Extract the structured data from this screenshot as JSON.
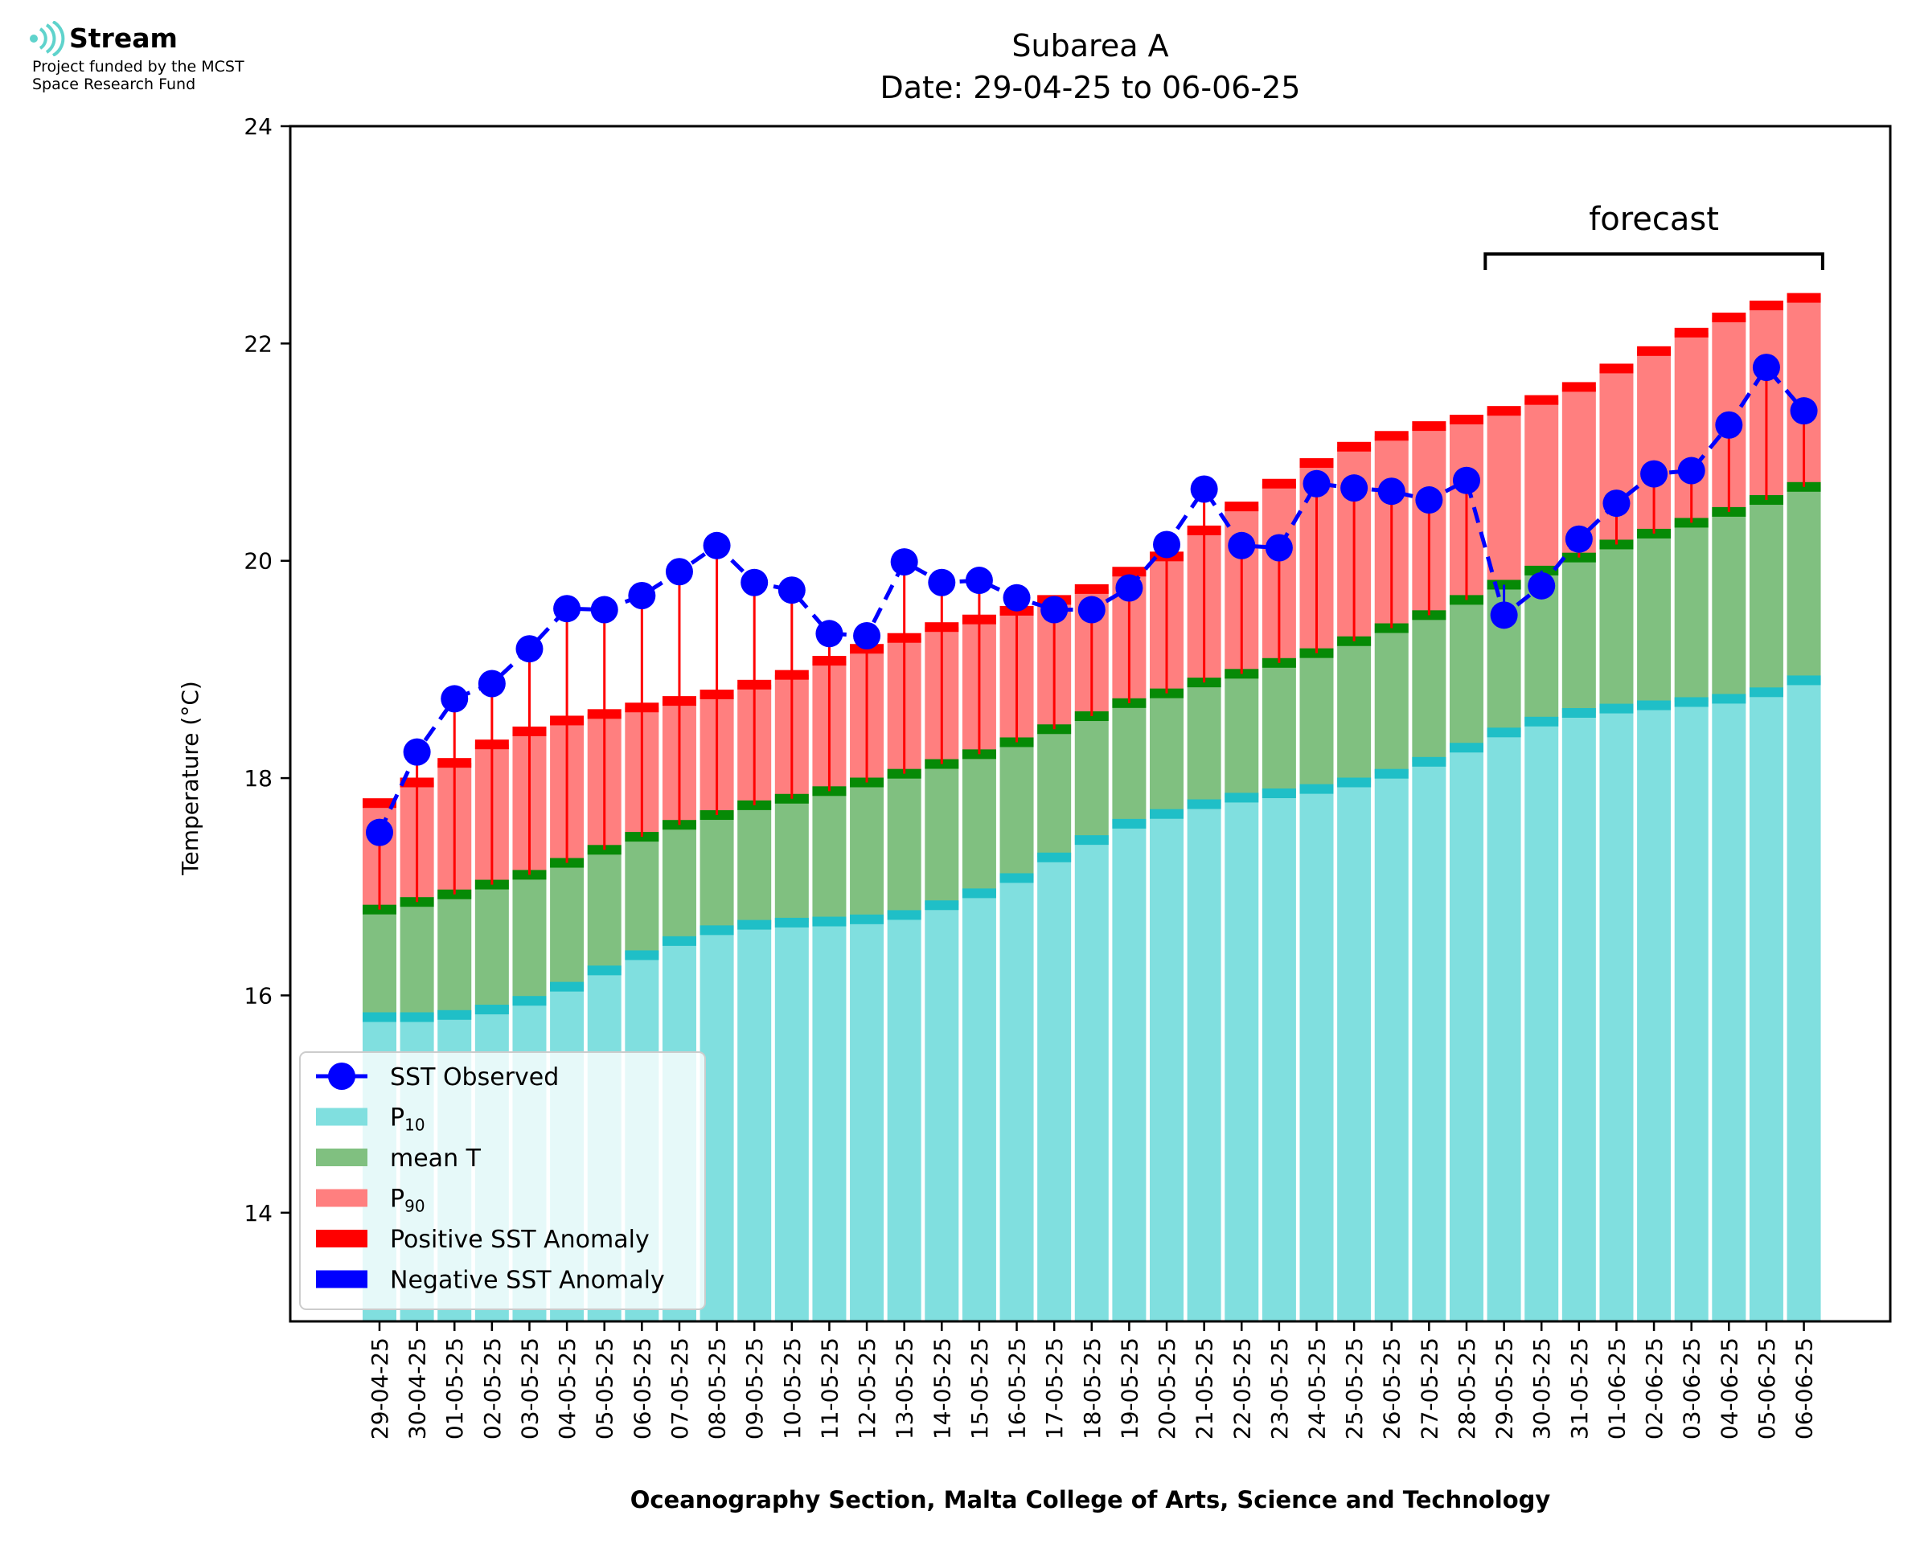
{
  "logo": {
    "name": "Stream",
    "line1": "Project funded by the MCST",
    "line2": "Space Research Fund"
  },
  "chart_data": {
    "type": "bar",
    "title": "Subarea A",
    "subtitle": "Date: 29-04-25 to 06-06-25",
    "xlabel": "Oceanography Section, Malta College of Arts, Science and Technology",
    "ylabel": "Temperature (°C)",
    "ylim": [
      13,
      24
    ],
    "yticks": [
      14,
      16,
      18,
      20,
      22,
      24
    ],
    "grid": false,
    "legend_position": "lower-left",
    "annotation": "forecast",
    "forecast_range": [
      "29-05-25",
      "06-06-25"
    ],
    "colors": {
      "p10": "#80dfdf",
      "p10_edge": "#1fbfc7",
      "mean": "#80c080",
      "mean_edge": "#068a06",
      "p90": "#ff7f7f",
      "p90_edge": "#ff0000",
      "observed": "#0000ff",
      "positive_anomaly": "#ff0000",
      "negative_anomaly": "#0000ff"
    },
    "categories": [
      "29-04-25",
      "30-04-25",
      "01-05-25",
      "02-05-25",
      "03-05-25",
      "04-05-25",
      "05-05-25",
      "06-05-25",
      "07-05-25",
      "08-05-25",
      "09-05-25",
      "10-05-25",
      "11-05-25",
      "12-05-25",
      "13-05-25",
      "14-05-25",
      "15-05-25",
      "16-05-25",
      "17-05-25",
      "18-05-25",
      "19-05-25",
      "20-05-25",
      "21-05-25",
      "22-05-25",
      "23-05-25",
      "24-05-25",
      "25-05-25",
      "26-05-25",
      "27-05-25",
      "28-05-25",
      "29-05-25",
      "30-05-25",
      "31-05-25",
      "01-06-25",
      "02-06-25",
      "03-06-25",
      "04-06-25",
      "05-06-25",
      "06-06-25"
    ],
    "series": [
      {
        "name": "P10",
        "key": "p10",
        "values": [
          15.8,
          15.8,
          15.82,
          15.87,
          15.95,
          16.08,
          16.23,
          16.37,
          16.5,
          16.6,
          16.65,
          16.67,
          16.68,
          16.7,
          16.74,
          16.83,
          16.94,
          17.08,
          17.27,
          17.43,
          17.58,
          17.67,
          17.76,
          17.82,
          17.86,
          17.9,
          17.96,
          18.04,
          18.15,
          18.28,
          18.42,
          18.52,
          18.6,
          18.64,
          18.67,
          18.7,
          18.73,
          18.79,
          18.9
        ]
      },
      {
        "name": "mean T",
        "key": "mean",
        "values": [
          16.79,
          16.86,
          16.93,
          17.02,
          17.11,
          17.22,
          17.34,
          17.46,
          17.57,
          17.66,
          17.75,
          17.81,
          17.88,
          17.96,
          18.04,
          18.13,
          18.22,
          18.33,
          18.45,
          18.57,
          18.69,
          18.78,
          18.88,
          18.96,
          19.06,
          19.15,
          19.26,
          19.38,
          19.5,
          19.64,
          19.78,
          19.91,
          20.03,
          20.15,
          20.25,
          20.35,
          20.45,
          20.56,
          20.68
        ]
      },
      {
        "name": "P90",
        "key": "p90",
        "values": [
          17.77,
          17.96,
          18.14,
          18.31,
          18.43,
          18.53,
          18.59,
          18.65,
          18.71,
          18.77,
          18.86,
          18.95,
          19.08,
          19.19,
          19.29,
          19.39,
          19.46,
          19.54,
          19.64,
          19.74,
          19.9,
          20.04,
          20.28,
          20.5,
          20.71,
          20.9,
          21.05,
          21.15,
          21.24,
          21.3,
          21.38,
          21.48,
          21.6,
          21.77,
          21.93,
          22.1,
          22.24,
          22.35,
          22.42
        ]
      },
      {
        "name": "SST Observed",
        "key": "observed",
        "values": [
          17.5,
          18.24,
          18.73,
          18.87,
          19.19,
          19.56,
          19.55,
          19.68,
          19.9,
          20.14,
          19.8,
          19.73,
          19.33,
          19.31,
          19.99,
          19.8,
          19.82,
          19.66,
          19.55,
          19.55,
          19.75,
          20.15,
          20.66,
          20.14,
          20.12,
          20.71,
          20.67,
          20.64,
          20.56,
          20.74,
          19.5,
          19.77,
          20.2,
          20.53,
          20.8,
          20.83,
          21.25,
          21.78,
          21.38
        ]
      }
    ],
    "legend": [
      {
        "key": "observed",
        "label": "SST Observed"
      },
      {
        "key": "p10",
        "label": "P",
        "sub": "10"
      },
      {
        "key": "mean",
        "label": "mean T"
      },
      {
        "key": "p90",
        "label": "P",
        "sub": "90"
      },
      {
        "key": "positive_anomaly",
        "label": "Positive SST Anomaly"
      },
      {
        "key": "negative_anomaly",
        "label": "Negative SST Anomaly"
      }
    ]
  }
}
